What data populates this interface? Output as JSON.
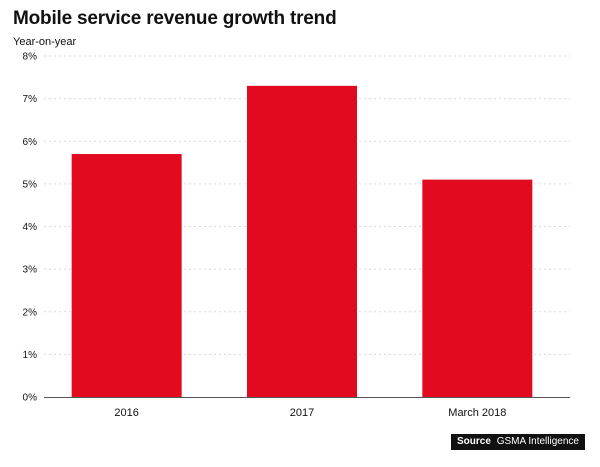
{
  "colors": {
    "bar": "#e20a1e",
    "grid": "#d9d9d9",
    "axis": "#555555"
  },
  "chart_data": {
    "type": "bar",
    "title": "Mobile service revenue growth trend",
    "subtitle": "Year-on-year",
    "categories": [
      "2016",
      "2017",
      "March 2018"
    ],
    "values": [
      5.7,
      7.3,
      5.1
    ],
    "unit": "%",
    "ylim": [
      0,
      8
    ],
    "yticks": [
      "0%",
      "1%",
      "2%",
      "3%",
      "4%",
      "5%",
      "6%",
      "7%",
      "8%"
    ],
    "grid": true
  },
  "source": {
    "label": "Source",
    "text": "GSMA Intelligence"
  }
}
